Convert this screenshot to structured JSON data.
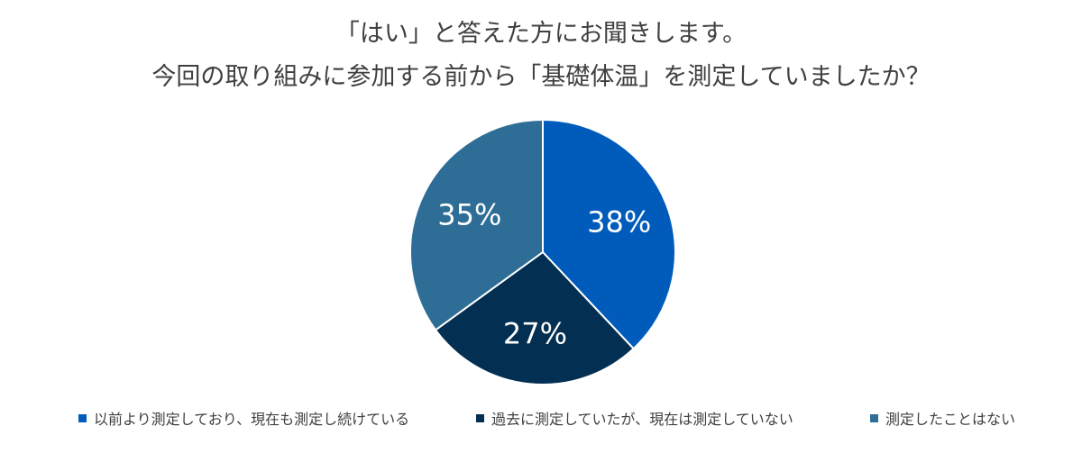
{
  "title": {
    "line1": "「はい」と答えた方にお聞きします。",
    "line2": "今回の取り組みに参加する前から「基礎体温」を測定していましたか？"
  },
  "chart_data": {
    "type": "pie",
    "title": "「はい」と答えた方にお聞きします。 今回の取り組みに参加する前から「基礎体温」を測定していましたか？",
    "slices": [
      {
        "name": "以前より測定しており、現在も測定し続けている",
        "value": 38,
        "label": "38%",
        "color": "#005bbb"
      },
      {
        "name": "過去に測定していたが、現在は測定していない",
        "value": 27,
        "label": "27%",
        "color": "#032f52"
      },
      {
        "name": "測定したことはない",
        "value": 35,
        "label": "35%",
        "color": "#2e6e96"
      }
    ],
    "start": "12 o'clock",
    "direction": "clockwise",
    "legend_position": "bottom"
  }
}
